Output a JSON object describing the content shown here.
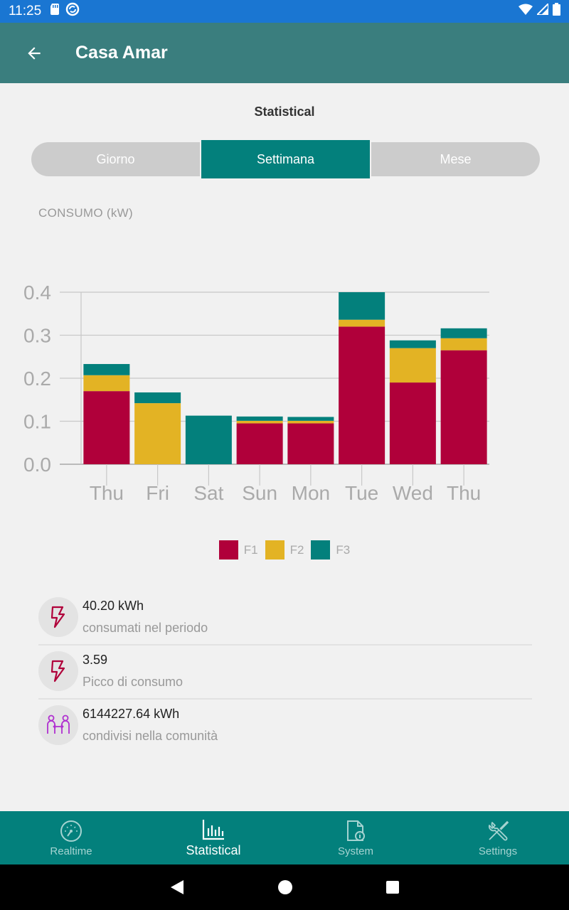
{
  "status_bar": {
    "time": "11:25"
  },
  "app_bar": {
    "title": "Casa Amar"
  },
  "section_title": "Statistical",
  "segments": [
    {
      "label": "Giorno",
      "active": false
    },
    {
      "label": "Settimana",
      "active": true
    },
    {
      "label": "Mese",
      "active": false
    }
  ],
  "chart_data": {
    "type": "bar",
    "stacked": true,
    "ylabel": "CONSUMO (kW)",
    "categories": [
      "Thu",
      "Fri",
      "Sat",
      "Sun",
      "Mon",
      "Tue",
      "Wed",
      "Thu"
    ],
    "series": [
      {
        "name": "F1",
        "color": "#b0003a",
        "values": [
          0.17,
          0.0,
          0.0,
          0.095,
          0.095,
          0.32,
          0.19,
          0.265
        ]
      },
      {
        "name": "F2",
        "color": "#e3b324",
        "values": [
          0.037,
          0.142,
          0.0,
          0.006,
          0.006,
          0.016,
          0.08,
          0.028
        ]
      },
      {
        "name": "F3",
        "color": "#03807c",
        "values": [
          0.026,
          0.025,
          0.113,
          0.01,
          0.009,
          0.064,
          0.018,
          0.023
        ]
      }
    ],
    "ylim": [
      0,
      0.4
    ],
    "yticks": [
      "0.0",
      "0.1",
      "0.2",
      "0.3",
      "0.4"
    ],
    "grid": true,
    "legend": "bottom"
  },
  "stats": [
    {
      "value": "40.20 kWh",
      "desc": "consumati nel periodo",
      "icon": "lightning-icon"
    },
    {
      "value": "3.59",
      "desc": "Picco di consumo",
      "icon": "lightning-icon"
    },
    {
      "value": "6144227.64 kWh",
      "desc": "condivisi nella comunità",
      "icon": "community-share-icon"
    }
  ],
  "bottom_nav": [
    {
      "label": "Realtime",
      "icon": "gauge-icon",
      "active": false
    },
    {
      "label": "Statistical",
      "icon": "bar-chart-icon",
      "active": true
    },
    {
      "label": "System",
      "icon": "document-info-icon",
      "active": false
    },
    {
      "label": "Settings",
      "icon": "tools-icon",
      "active": false
    }
  ],
  "colors": {
    "primary": "#03807c",
    "app_bar": "#3a7e7e",
    "status_bar": "#1a76d2"
  }
}
